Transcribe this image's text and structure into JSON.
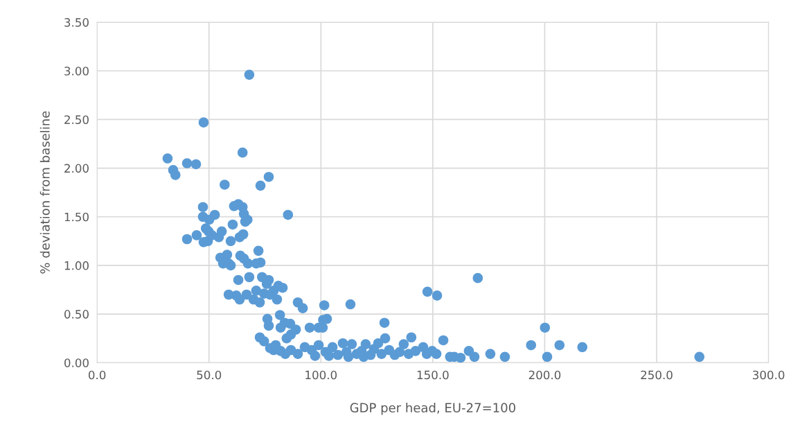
{
  "chart_data": {
    "type": "scatter",
    "xlabel": "GDP per head, EU-27=100",
    "ylabel": "% deviation from baseline",
    "xlim": [
      0,
      300
    ],
    "xticks": [
      {
        "value": 0,
        "label": "0.0"
      },
      {
        "value": 50,
        "label": "50.0"
      },
      {
        "value": 100,
        "label": "100.0"
      },
      {
        "value": 150,
        "label": "150.0"
      },
      {
        "value": 200,
        "label": "200.0"
      },
      {
        "value": 250,
        "label": "250.0"
      },
      {
        "value": 300,
        "label": "300.0"
      }
    ],
    "ylim": [
      0,
      3.5
    ],
    "yticks": [
      {
        "value": 0,
        "label": "0.00"
      },
      {
        "value": 0.5,
        "label": "0.50"
      },
      {
        "value": 1,
        "label": "1.00"
      },
      {
        "value": 1.5,
        "label": "1.50"
      },
      {
        "value": 2,
        "label": "2.00"
      },
      {
        "value": 2.5,
        "label": "2.50"
      },
      {
        "value": 3,
        "label": "3.00"
      },
      {
        "value": 3.5,
        "label": "3.50"
      }
    ],
    "grid": true,
    "marker": "circle",
    "series": [
      {
        "color": "#5b9bd5",
        "x": [
          31.5,
          34.0,
          35.0,
          40.2,
          44.2,
          47.6,
          68.0,
          65.0,
          76.7,
          73.0,
          57.0,
          85.3,
          40.2,
          44.5,
          47.3,
          47.3,
          48.6,
          47.6,
          49.5,
          50.1,
          51.3,
          52.6,
          49.8,
          54.4,
          55.7,
          55.1,
          56.3,
          58.1,
          59.7,
          58.8,
          59.7,
          60.6,
          61.2,
          63.1,
          65.0,
          65.6,
          66.2,
          67.2,
          65.3,
          63.7,
          64.0,
          65.6,
          67.4,
          63.1,
          58.8,
          62.2,
          63.7,
          66.8,
          68.0,
          69.9,
          71.1,
          72.1,
          73.0,
          72.7,
          73.7,
          74.6,
          75.8,
          76.7,
          77.3,
          78.9,
          81.0,
          82.9,
          80.4,
          71.1,
          72.7,
          74.6,
          76.1,
          76.7,
          77.3,
          79.8,
          81.7,
          82.0,
          83.8,
          86.3,
          84.7,
          86.6,
          89.7,
          91.9,
          88.8,
          95.0,
          99.0,
          101.0,
          101.5,
          102.7,
          100.8,
          113.2,
          128.4,
          147.6,
          151.9,
          170.1,
          140.4,
          154.7,
          200.1,
          193.9,
          206.6,
          216.8,
          201.1,
          269.1,
          86.6,
          89.7,
          92.8,
          95.9,
          99.0,
          102.1,
          105.2,
          107.6,
          109.8,
          111.4,
          113.8,
          116.0,
          118.2,
          120.0,
          122.2,
          123.7,
          125.6,
          127.1,
          128.7,
          130.5,
          133.0,
          135.2,
          137.0,
          139.2,
          142.3,
          145.7,
          147.3,
          149.7,
          151.6,
          157.7,
          159.6,
          162.4,
          166.1,
          168.6,
          175.7,
          182.2,
          82.0,
          78.9,
          84.1,
          97.4,
          103.6,
          112.3,
          119.1
        ],
        "values": [
          2.1,
          1.98,
          1.93,
          2.05,
          2.04,
          2.47,
          2.96,
          2.16,
          1.91,
          1.82,
          1.83,
          1.52,
          1.27,
          1.31,
          1.5,
          1.6,
          1.38,
          1.24,
          1.25,
          1.47,
          1.31,
          1.52,
          1.35,
          1.29,
          1.35,
          1.08,
          1.02,
          1.11,
          1.0,
          1.02,
          1.25,
          1.42,
          1.61,
          1.63,
          1.6,
          1.53,
          1.45,
          1.47,
          1.32,
          1.29,
          1.1,
          1.07,
          1.02,
          0.85,
          0.7,
          0.69,
          0.65,
          0.7,
          0.88,
          0.65,
          1.02,
          1.15,
          1.03,
          0.62,
          0.88,
          0.71,
          0.81,
          0.85,
          0.7,
          0.74,
          0.79,
          0.77,
          0.65,
          0.74,
          0.26,
          0.22,
          0.45,
          0.38,
          0.15,
          0.18,
          0.49,
          0.36,
          0.41,
          0.4,
          0.25,
          0.29,
          0.62,
          0.56,
          0.34,
          0.36,
          0.36,
          0.44,
          0.59,
          0.45,
          0.36,
          0.6,
          0.41,
          0.73,
          0.69,
          0.87,
          0.26,
          0.23,
          0.36,
          0.18,
          0.18,
          0.16,
          0.06,
          0.06,
          0.13,
          0.09,
          0.16,
          0.13,
          0.18,
          0.11,
          0.16,
          0.08,
          0.2,
          0.11,
          0.19,
          0.09,
          0.12,
          0.19,
          0.08,
          0.14,
          0.2,
          0.09,
          0.25,
          0.13,
          0.08,
          0.11,
          0.19,
          0.09,
          0.12,
          0.16,
          0.09,
          0.12,
          0.09,
          0.06,
          0.06,
          0.05,
          0.12,
          0.06,
          0.09,
          0.06,
          0.12,
          0.13,
          0.09,
          0.07,
          0.07,
          0.06,
          0.06
        ]
      }
    ]
  }
}
